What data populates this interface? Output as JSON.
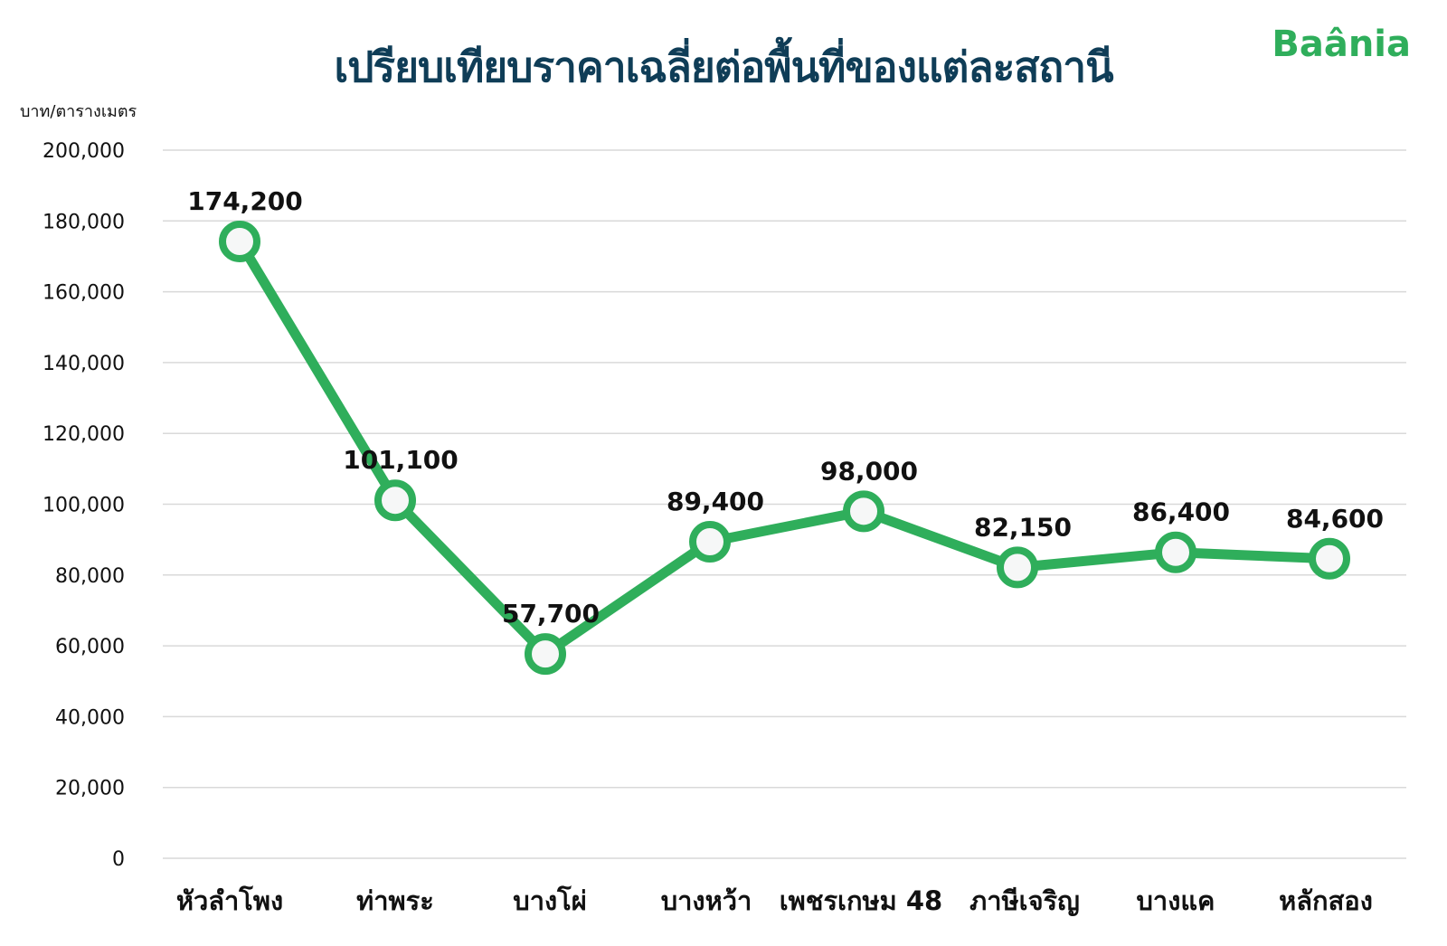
{
  "header": {
    "title": "เปรียบเทียบราคาเฉลี่ยต่อพื้นที่ของแต่ละสถานี",
    "logo_text": "Baânia"
  },
  "colors": {
    "line": "#2fae5b",
    "title": "#0f3d57",
    "grid": "#d9d9d9",
    "marker_fill": "#f6f7f7"
  },
  "chart_data": {
    "type": "line",
    "ylabel": "บาท/ตารางเมตร",
    "xlabel": "",
    "ylim": [
      0,
      200000
    ],
    "yticks": [
      0,
      20000,
      40000,
      60000,
      80000,
      100000,
      120000,
      140000,
      160000,
      180000,
      200000
    ],
    "ytick_labels": [
      "0",
      "20,000",
      "40,000",
      "60,000",
      "80,000",
      "100,000",
      "120,000",
      "140,000",
      "160,000",
      "180,000",
      "200,000"
    ],
    "grid": true,
    "categories": [
      "หัวลำโพง",
      "ท่าพระ",
      "บางโผ่",
      "บางหว้า",
      "เพชรเกษม 48",
      "ภาษีเจริญ",
      "บางแค",
      "หลักสอง"
    ],
    "series": [
      {
        "values": [
          174200,
          101100,
          57700,
          89400,
          98000,
          82150,
          86400,
          84600
        ],
        "labels": [
          "174,200",
          "101,100",
          "57,700",
          "89,400",
          "98,000",
          "82,150",
          "86,400",
          "84,600"
        ]
      }
    ]
  }
}
